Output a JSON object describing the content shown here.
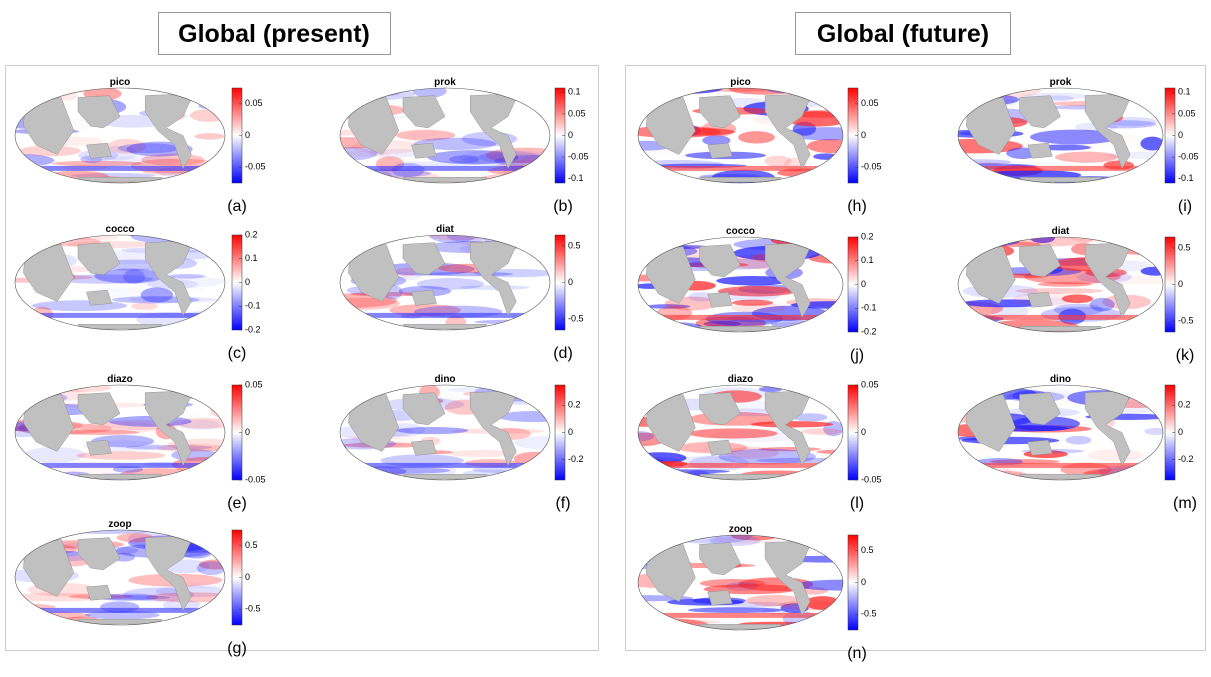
{
  "panels": [
    {
      "title": "Global (present)",
      "maps": [
        {
          "name": "pico",
          "label": "(a)",
          "clim": [
            -0.075,
            0.075
          ],
          "ticks": [
            0.05,
            0,
            -0.05
          ]
        },
        {
          "name": "prok",
          "label": "(b)",
          "clim": [
            -0.11,
            0.11
          ],
          "ticks": [
            0.1,
            0.05,
            0,
            -0.05,
            -0.1
          ]
        },
        {
          "name": "cocco",
          "label": "(c)",
          "clim": [
            -0.2,
            0.2
          ],
          "ticks": [
            0.2,
            0.1,
            0,
            -0.1,
            -0.2
          ]
        },
        {
          "name": "diat",
          "label": "(d)",
          "clim": [
            -0.65,
            0.65
          ],
          "ticks": [
            0.5,
            0,
            -0.5
          ]
        },
        {
          "name": "diazo",
          "label": "(e)",
          "clim": [
            -0.05,
            0.05
          ],
          "ticks": [
            0.05,
            0,
            -0.05
          ]
        },
        {
          "name": "dino",
          "label": "(f)",
          "clim": [
            -0.35,
            0.35
          ],
          "ticks": [
            0.2,
            0,
            -0.2
          ]
        },
        {
          "name": "zoop",
          "label": "(g)",
          "clim": [
            -0.75,
            0.75
          ],
          "ticks": [
            0.5,
            0,
            -0.5
          ]
        }
      ]
    },
    {
      "title": "Global (future)",
      "maps": [
        {
          "name": "pico",
          "label": "(h)",
          "clim": [
            -0.075,
            0.075
          ],
          "ticks": [
            0.05,
            0,
            -0.05
          ]
        },
        {
          "name": "prok",
          "label": "(i)",
          "clim": [
            -0.11,
            0.11
          ],
          "ticks": [
            0.1,
            0.05,
            0,
            -0.05,
            -0.1
          ]
        },
        {
          "name": "cocco",
          "label": "(j)",
          "clim": [
            -0.2,
            0.2
          ],
          "ticks": [
            0.2,
            0.1,
            0,
            -0.1,
            -0.2
          ]
        },
        {
          "name": "diat",
          "label": "(k)",
          "clim": [
            -0.65,
            0.65
          ],
          "ticks": [
            0.5,
            0,
            -0.5
          ]
        },
        {
          "name": "diazo",
          "label": "(l)",
          "clim": [
            -0.05,
            0.05
          ],
          "ticks": [
            0.05,
            0,
            -0.05
          ]
        },
        {
          "name": "dino",
          "label": "(m)",
          "clim": [
            -0.35,
            0.35
          ],
          "ticks": [
            0.2,
            0,
            -0.2
          ]
        },
        {
          "name": "zoop",
          "label": "(n)",
          "clim": [
            -0.75,
            0.75
          ],
          "ticks": [
            0.5,
            0,
            -0.5
          ]
        }
      ]
    }
  ]
}
